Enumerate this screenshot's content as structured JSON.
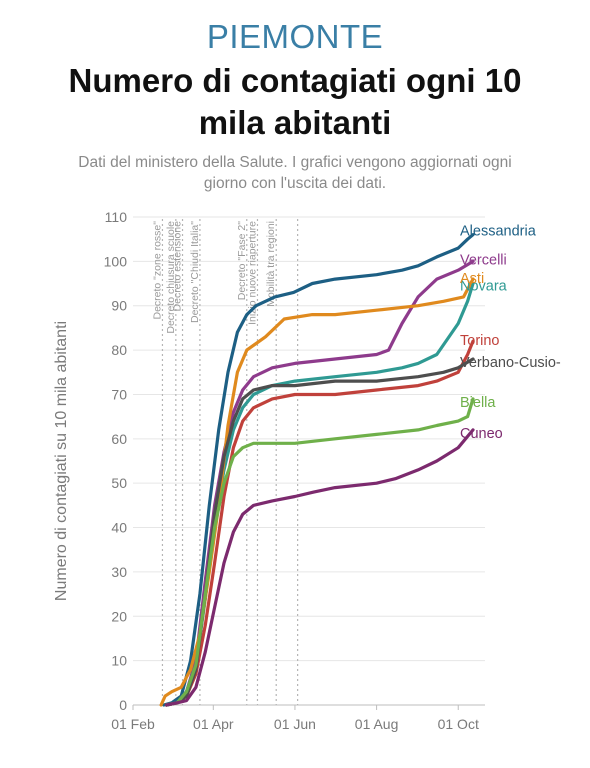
{
  "header": {
    "region": "PIEMONTE",
    "region_color": "#3a7fa6",
    "title_line1": "Numero di contagiati ogni 10",
    "title_line2": "mila abitanti",
    "subtitle_line1": "Dati del ministero della Salute. I grafici vengono aggiornati ogni",
    "subtitle_line2": "giorno con l'uscita dei dati."
  },
  "chart_data": {
    "type": "line",
    "ylabel": "Numero di contagiati su 10 mila abitanti",
    "xlabel": "",
    "ylim": [
      0,
      110
    ],
    "yticks": [
      0,
      10,
      20,
      30,
      40,
      50,
      60,
      70,
      80,
      90,
      100,
      110
    ],
    "xlim": [
      "2020-02-01",
      "2020-10-21"
    ],
    "xticks": [
      {
        "date": "2020-02-01",
        "label": "01 Feb"
      },
      {
        "date": "2020-04-01",
        "label": "01 Apr"
      },
      {
        "date": "2020-06-01",
        "label": "01 Jun"
      },
      {
        "date": "2020-08-01",
        "label": "01 Aug"
      },
      {
        "date": "2020-10-01",
        "label": "01 Oct"
      }
    ],
    "grid": true,
    "events": [
      {
        "date": "2020-02-23",
        "label": "Decreto \"zone rosse\""
      },
      {
        "date": "2020-03-04",
        "label": "Decreto chiusura scuole"
      },
      {
        "date": "2020-03-09",
        "label": "Decreto estensione"
      },
      {
        "date": "2020-03-22",
        "label": "Decreto \"Chiudi Italia\""
      },
      {
        "date": "2020-04-26",
        "label": "Decreto \"Fase 2\""
      },
      {
        "date": "2020-05-04",
        "label": "Inizio nuove riaperture"
      },
      {
        "date": "2020-05-18",
        "label": "Mobilità tra regioni"
      },
      {
        "date": "2020-06-03",
        "label": ""
      }
    ],
    "series": [
      {
        "name": "Alessandria",
        "color": "#1d5f84",
        "points": [
          [
            "2020-02-24",
            0
          ],
          [
            "2020-03-01",
            0.5
          ],
          [
            "2020-03-08",
            2
          ],
          [
            "2020-03-15",
            10
          ],
          [
            "2020-03-22",
            25
          ],
          [
            "2020-03-29",
            45
          ],
          [
            "2020-04-05",
            62
          ],
          [
            "2020-04-12",
            75
          ],
          [
            "2020-04-19",
            84
          ],
          [
            "2020-04-26",
            88
          ],
          [
            "2020-05-03",
            90
          ],
          [
            "2020-05-17",
            92
          ],
          [
            "2020-05-31",
            93
          ],
          [
            "2020-06-14",
            95
          ],
          [
            "2020-07-01",
            96
          ],
          [
            "2020-08-01",
            97
          ],
          [
            "2020-08-20",
            98
          ],
          [
            "2020-09-01",
            99
          ],
          [
            "2020-09-15",
            101
          ],
          [
            "2020-10-01",
            103
          ],
          [
            "2020-10-08",
            105
          ],
          [
            "2020-10-12",
            106
          ]
        ]
      },
      {
        "name": "Vercelli",
        "color": "#8e3b8c",
        "points": [
          [
            "2020-02-26",
            0
          ],
          [
            "2020-03-05",
            0.5
          ],
          [
            "2020-03-12",
            3
          ],
          [
            "2020-03-19",
            10
          ],
          [
            "2020-03-26",
            28
          ],
          [
            "2020-04-02",
            45
          ],
          [
            "2020-04-09",
            57
          ],
          [
            "2020-04-16",
            66
          ],
          [
            "2020-04-23",
            71
          ],
          [
            "2020-05-01",
            74
          ],
          [
            "2020-05-15",
            76
          ],
          [
            "2020-06-01",
            77
          ],
          [
            "2020-07-01",
            78
          ],
          [
            "2020-08-01",
            79
          ],
          [
            "2020-08-10",
            80
          ],
          [
            "2020-08-20",
            86
          ],
          [
            "2020-09-01",
            92
          ],
          [
            "2020-09-15",
            96
          ],
          [
            "2020-10-01",
            98
          ],
          [
            "2020-10-12",
            100
          ]
        ]
      },
      {
        "name": "Novara",
        "color": "#2f9a93",
        "points": [
          [
            "2020-02-26",
            0
          ],
          [
            "2020-03-05",
            0.5
          ],
          [
            "2020-03-12",
            3
          ],
          [
            "2020-03-19",
            9
          ],
          [
            "2020-03-26",
            24
          ],
          [
            "2020-04-02",
            41
          ],
          [
            "2020-04-09",
            53
          ],
          [
            "2020-04-16",
            62
          ],
          [
            "2020-04-23",
            67
          ],
          [
            "2020-05-01",
            70
          ],
          [
            "2020-05-15",
            72
          ],
          [
            "2020-06-01",
            73
          ],
          [
            "2020-07-01",
            74
          ],
          [
            "2020-08-01",
            75
          ],
          [
            "2020-08-20",
            76
          ],
          [
            "2020-09-01",
            77
          ],
          [
            "2020-09-15",
            79
          ],
          [
            "2020-10-01",
            86
          ],
          [
            "2020-10-08",
            91
          ],
          [
            "2020-10-12",
            95
          ]
        ]
      },
      {
        "name": "Asti",
        "color": "#e08a1e",
        "points": [
          [
            "2020-02-22",
            0
          ],
          [
            "2020-02-25",
            2
          ],
          [
            "2020-03-01",
            3
          ],
          [
            "2020-03-08",
            4
          ],
          [
            "2020-03-15",
            8
          ],
          [
            "2020-03-22",
            16
          ],
          [
            "2020-03-29",
            30
          ],
          [
            "2020-04-05",
            45
          ],
          [
            "2020-04-12",
            63
          ],
          [
            "2020-04-19",
            75
          ],
          [
            "2020-04-26",
            80
          ],
          [
            "2020-05-10",
            83
          ],
          [
            "2020-05-24",
            87
          ],
          [
            "2020-06-14",
            88
          ],
          [
            "2020-07-01",
            88
          ],
          [
            "2020-08-01",
            89
          ],
          [
            "2020-09-01",
            90
          ],
          [
            "2020-09-20",
            91
          ],
          [
            "2020-10-05",
            92
          ],
          [
            "2020-10-12",
            96
          ]
        ]
      },
      {
        "name": "Torino",
        "color": "#c0413b",
        "points": [
          [
            "2020-02-26",
            0
          ],
          [
            "2020-03-05",
            0.5
          ],
          [
            "2020-03-12",
            2
          ],
          [
            "2020-03-19",
            7
          ],
          [
            "2020-03-26",
            18
          ],
          [
            "2020-04-02",
            32
          ],
          [
            "2020-04-09",
            47
          ],
          [
            "2020-04-16",
            58
          ],
          [
            "2020-04-23",
            64
          ],
          [
            "2020-05-01",
            67
          ],
          [
            "2020-05-15",
            69
          ],
          [
            "2020-06-01",
            70
          ],
          [
            "2020-07-01",
            70
          ],
          [
            "2020-08-01",
            71
          ],
          [
            "2020-09-01",
            72
          ],
          [
            "2020-09-15",
            73
          ],
          [
            "2020-10-01",
            75
          ],
          [
            "2020-10-08",
            79
          ],
          [
            "2020-10-12",
            82
          ]
        ]
      },
      {
        "name": "Verbano-Cusio-",
        "color": "#4e4e4e",
        "points": [
          [
            "2020-02-26",
            0
          ],
          [
            "2020-03-05",
            0.5
          ],
          [
            "2020-03-12",
            2
          ],
          [
            "2020-03-19",
            8
          ],
          [
            "2020-03-26",
            25
          ],
          [
            "2020-04-02",
            43
          ],
          [
            "2020-04-09",
            56
          ],
          [
            "2020-04-16",
            64
          ],
          [
            "2020-04-23",
            69
          ],
          [
            "2020-05-01",
            71
          ],
          [
            "2020-05-15",
            72
          ],
          [
            "2020-06-01",
            72
          ],
          [
            "2020-07-01",
            73
          ],
          [
            "2020-08-01",
            73
          ],
          [
            "2020-09-01",
            74
          ],
          [
            "2020-09-20",
            75
          ],
          [
            "2020-10-01",
            76
          ],
          [
            "2020-10-12",
            78
          ]
        ]
      },
      {
        "name": "Biella",
        "color": "#6fb04a",
        "points": [
          [
            "2020-02-26",
            0
          ],
          [
            "2020-03-05",
            0.5
          ],
          [
            "2020-03-12",
            3
          ],
          [
            "2020-03-19",
            9
          ],
          [
            "2020-03-26",
            25
          ],
          [
            "2020-04-02",
            40
          ],
          [
            "2020-04-09",
            50
          ],
          [
            "2020-04-16",
            56
          ],
          [
            "2020-04-23",
            58
          ],
          [
            "2020-05-01",
            59
          ],
          [
            "2020-05-15",
            59
          ],
          [
            "2020-06-01",
            59
          ],
          [
            "2020-07-01",
            60
          ],
          [
            "2020-08-01",
            61
          ],
          [
            "2020-09-01",
            62
          ],
          [
            "2020-09-15",
            63
          ],
          [
            "2020-10-01",
            64
          ],
          [
            "2020-10-08",
            65
          ],
          [
            "2020-10-12",
            69
          ]
        ]
      },
      {
        "name": "Cuneo",
        "color": "#7c2a6e",
        "points": [
          [
            "2020-02-26",
            0
          ],
          [
            "2020-03-05",
            0.5
          ],
          [
            "2020-03-12",
            1
          ],
          [
            "2020-03-19",
            4
          ],
          [
            "2020-03-26",
            12
          ],
          [
            "2020-04-02",
            22
          ],
          [
            "2020-04-09",
            32
          ],
          [
            "2020-04-16",
            39
          ],
          [
            "2020-04-23",
            43
          ],
          [
            "2020-05-01",
            45
          ],
          [
            "2020-05-15",
            46
          ],
          [
            "2020-06-01",
            47
          ],
          [
            "2020-06-15",
            48
          ],
          [
            "2020-07-01",
            49
          ],
          [
            "2020-08-01",
            50
          ],
          [
            "2020-08-15",
            51
          ],
          [
            "2020-09-01",
            53
          ],
          [
            "2020-09-15",
            55
          ],
          [
            "2020-10-01",
            58
          ],
          [
            "2020-10-12",
            62
          ]
        ]
      }
    ]
  }
}
